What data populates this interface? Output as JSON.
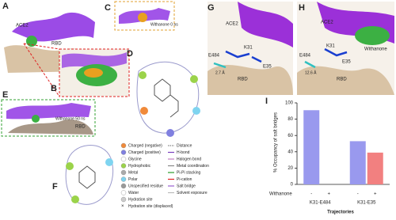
{
  "panels": [
    {
      "label": "A",
      "texts": [
        "ACE2",
        "RBD"
      ]
    },
    {
      "label": "B",
      "texts": []
    },
    {
      "label": "C",
      "texts": [
        "Withanone 0 ns"
      ]
    },
    {
      "label": "D",
      "texts": []
    },
    {
      "label": "E",
      "texts": [
        "Withanone 50 ns",
        "RBD"
      ]
    },
    {
      "label": "F",
      "texts": []
    },
    {
      "label": "G",
      "texts": [
        "ACE2",
        "E484",
        "K31",
        "E35",
        "RBD",
        "2.7 Å"
      ]
    },
    {
      "label": "H",
      "texts": [
        "ACE2",
        "Withanone",
        "E484",
        "K31",
        "E35",
        "RBD",
        "12.6 Å"
      ]
    }
  ],
  "legend": {
    "left": [
      "Charged (negative)",
      "Charged (positive)",
      "Glycine",
      "Hydrophobic",
      "Metal",
      "Polar",
      "Unspecified residue",
      "Water",
      "Hydration site",
      "Hydration site (displaced)"
    ],
    "right": [
      "Distance",
      "H-bond",
      "Halogen bond",
      "Metal coordination",
      "Pi-Pi stacking",
      "Pi-cation",
      "Salt bridge",
      "Solvent exposure"
    ]
  },
  "chart_data": {
    "type": "bar",
    "panel_label": "I",
    "ylabel": "% Occupancy of salt bridges",
    "xlabel": "Trajectories",
    "row_label": "Withanone",
    "categories": [
      "K31-E484",
      "K31-E35"
    ],
    "series": [
      {
        "name": "-",
        "color": "#9999ee",
        "values": [
          91,
          53
        ]
      },
      {
        "name": "+",
        "color": "#f28080",
        "values": [
          0,
          39
        ]
      }
    ],
    "ylim": [
      0,
      100
    ],
    "yticks": [
      0,
      20,
      40,
      60,
      80,
      100
    ]
  }
}
